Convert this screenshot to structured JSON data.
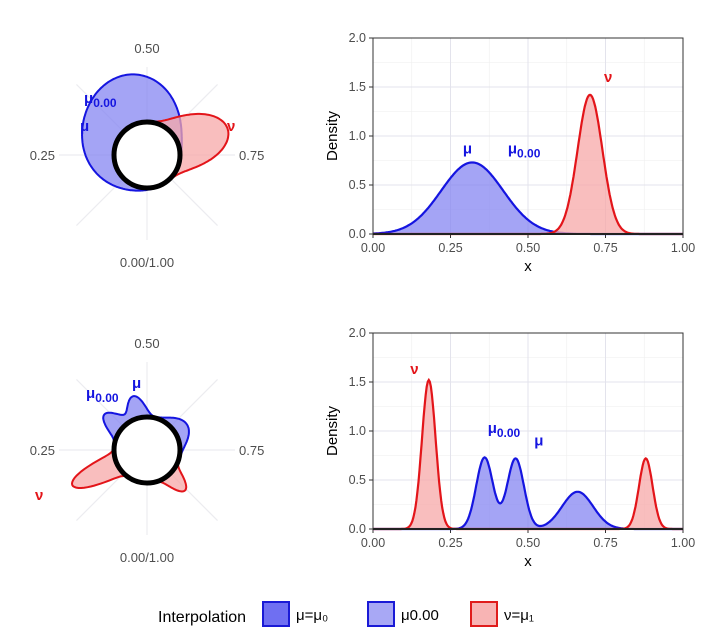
{
  "legend": {
    "title": "Interpolation",
    "items": [
      {
        "label": "μ=μ₀",
        "fill": "#6f6ff2",
        "stroke": "#1a1ad6"
      },
      {
        "label": "μ0.00",
        "fill": "#a8a8f5",
        "stroke": "#1a1ad6"
      },
      {
        "label": "ν=μ₁",
        "fill": "#f8b4b4",
        "stroke": "#e01c1c"
      }
    ]
  },
  "colors": {
    "mu_fill": "#8585f2",
    "mu_stroke": "#1515e0",
    "nu_fill": "#f7a8a8",
    "nu_stroke": "#e3151a",
    "grid": "#e3e3ec",
    "panel_border": "#333333"
  },
  "chart_data": [
    {
      "type": "polar-area",
      "panel": "top-left",
      "direction_labels": {
        "top": "0.50",
        "left": "0.25",
        "right": "0.75",
        "bottom": "0.00/1.00"
      },
      "series_labels": [
        {
          "text": "μ",
          "sub": "0.00",
          "series": "mu"
        },
        {
          "text": "μ",
          "sub": "",
          "series": "mu"
        },
        {
          "text": "ν",
          "sub": "",
          "series": "nu"
        }
      ]
    },
    {
      "type": "area",
      "panel": "top-right",
      "xlabel": "x",
      "ylabel": "Density",
      "xlim": [
        0,
        1
      ],
      "ylim": [
        0,
        2.0
      ],
      "xticks": [
        "0.00",
        "0.25",
        "0.50",
        "0.75",
        "1.00"
      ],
      "yticks": [
        "0.0",
        "0.5",
        "1.0",
        "1.5",
        "2.0"
      ],
      "series": [
        {
          "id": "mu",
          "components": [
            {
              "mean": 0.32,
              "sd": 0.1,
              "peak": 0.73
            }
          ]
        },
        {
          "id": "nu",
          "components": [
            {
              "mean": 0.7,
              "sd": 0.04,
              "peak": 1.42
            }
          ]
        }
      ],
      "series_labels": [
        {
          "text": "μ",
          "sub": "",
          "series": "mu",
          "x": 0.29,
          "y": 0.82
        },
        {
          "text": "μ",
          "sub": "0.00",
          "series": "mu",
          "x": 0.435,
          "y": 0.82
        },
        {
          "text": "ν",
          "sub": "",
          "series": "nu",
          "x": 0.745,
          "y": 1.55
        }
      ]
    },
    {
      "type": "polar-area",
      "panel": "bottom-left",
      "direction_labels": {
        "top": "0.50",
        "left": "0.25",
        "right": "0.75",
        "bottom": "0.00/1.00"
      },
      "series_labels": [
        {
          "text": "μ",
          "sub": "0.00",
          "series": "mu"
        },
        {
          "text": "μ",
          "sub": "",
          "series": "mu"
        },
        {
          "text": "ν",
          "sub": "",
          "series": "nu"
        }
      ]
    },
    {
      "type": "area",
      "panel": "bottom-right",
      "xlabel": "x",
      "ylabel": "Density",
      "xlim": [
        0,
        1
      ],
      "ylim": [
        0,
        2.0
      ],
      "xticks": [
        "0.00",
        "0.25",
        "0.50",
        "0.75",
        "1.00"
      ],
      "yticks": [
        "0.0",
        "0.5",
        "1.0",
        "1.5",
        "2.0"
      ],
      "series": [
        {
          "id": "mu",
          "components": [
            {
              "mean": 0.36,
              "sd": 0.027,
              "peak": 0.73
            },
            {
              "mean": 0.46,
              "sd": 0.027,
              "peak": 0.72
            },
            {
              "mean": 0.66,
              "sd": 0.05,
              "peak": 0.38
            }
          ]
        },
        {
          "id": "nu",
          "components": [
            {
              "mean": 0.18,
              "sd": 0.022,
              "peak": 1.52
            },
            {
              "mean": 0.88,
              "sd": 0.022,
              "peak": 0.72
            }
          ]
        }
      ],
      "series_labels": [
        {
          "text": "ν",
          "sub": "",
          "series": "nu",
          "x": 0.12,
          "y": 1.58
        },
        {
          "text": "μ",
          "sub": "0.00",
          "series": "mu",
          "x": 0.37,
          "y": 0.98
        },
        {
          "text": "μ",
          "sub": "",
          "series": "mu",
          "x": 0.52,
          "y": 0.85
        }
      ]
    }
  ]
}
